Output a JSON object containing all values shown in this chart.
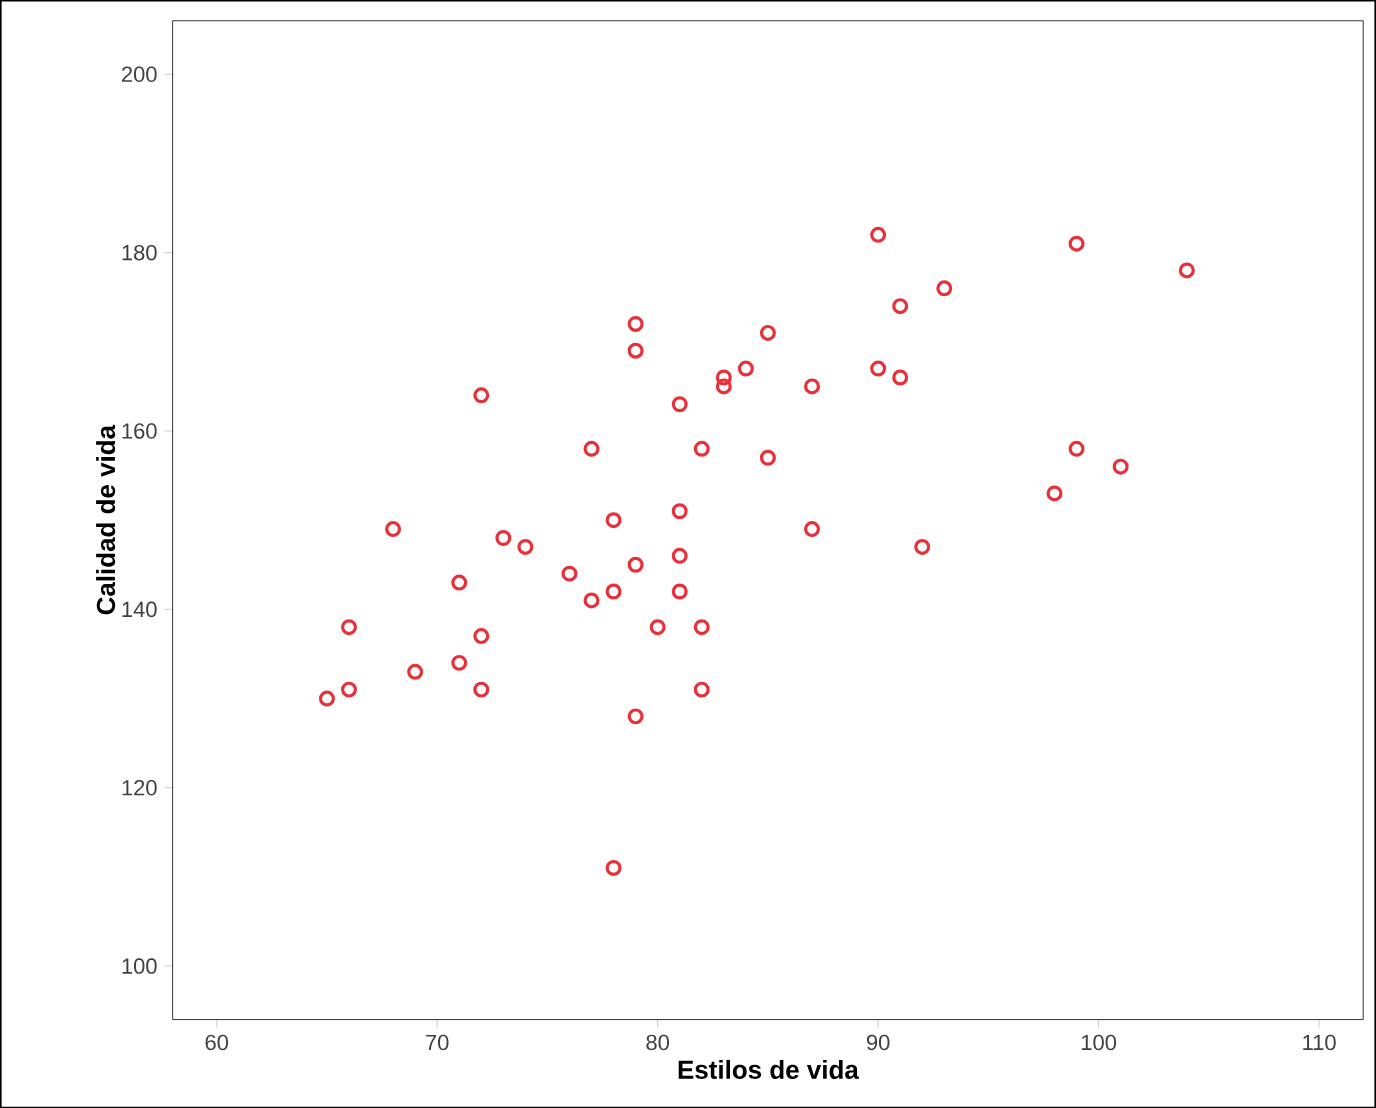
{
  "chart_data": {
    "type": "scatter",
    "xlabel": "Estilos de vida",
    "ylabel": "Calidad de vida",
    "x": [
      65,
      66,
      66,
      68,
      69,
      71,
      71,
      72,
      72,
      72,
      73,
      74,
      76,
      77,
      77,
      78,
      78,
      78,
      79,
      79,
      79,
      79,
      80,
      81,
      81,
      81,
      81,
      82,
      82,
      82,
      83,
      83,
      84,
      85,
      85,
      87,
      87,
      90,
      90,
      91,
      91,
      92,
      93,
      98,
      99,
      99,
      101,
      104
    ],
    "values": [
      130,
      138,
      131,
      149,
      133,
      143,
      134,
      137,
      131,
      164,
      148,
      147,
      144,
      141,
      158,
      150,
      142,
      111,
      172,
      169,
      145,
      128,
      138,
      163,
      151,
      146,
      142,
      158,
      138,
      131,
      166,
      165,
      167,
      171,
      157,
      165,
      149,
      182,
      167,
      174,
      166,
      147,
      176,
      153,
      181,
      158,
      156,
      178
    ],
    "color": "#e8303a",
    "marker": "circle",
    "grid": false,
    "xlim": [
      58,
      112
    ],
    "xticks": [
      60,
      70,
      80,
      90,
      100,
      110
    ],
    "ylim": [
      94,
      206
    ],
    "yticks": [
      100,
      120,
      140,
      160,
      180,
      200
    ]
  }
}
